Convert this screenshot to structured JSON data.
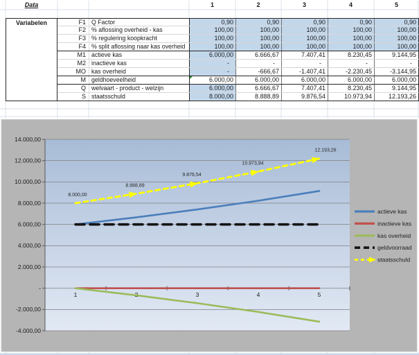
{
  "table": {
    "header_label": "Data",
    "col_headers": [
      "1",
      "2",
      "3",
      "4",
      "5"
    ],
    "row_group_label": "Variabelen",
    "rows": [
      {
        "code": "F1",
        "label": "Q Factor",
        "values": [
          "0,90",
          "0,90",
          "0,90",
          "0,90",
          "0,90"
        ]
      },
      {
        "code": "F2",
        "label": "% aflossing overheid - kas",
        "values": [
          "100,00",
          "100,00",
          "100,00",
          "100,00",
          "100,00"
        ]
      },
      {
        "code": "F3",
        "label": "% regulering koopkracht",
        "values": [
          "100,00",
          "100,00",
          "100,00",
          "100,00",
          "100,00"
        ]
      },
      {
        "code": "F4",
        "label": "% split aflossing naar kas overheid",
        "values": [
          "100,00",
          "100,00",
          "100,00",
          "100,00",
          "100,00"
        ]
      },
      {
        "code": "M1",
        "label": "actieve kas",
        "values": [
          "6.000,00",
          "6.666,67",
          "7.407,41",
          "8.230,45",
          "9.144,95"
        ]
      },
      {
        "code": "M2",
        "label": "inactieve kas",
        "values": [
          "-",
          "-",
          "-",
          "-",
          "-"
        ]
      },
      {
        "code": "MO",
        "label": "kas overheid",
        "values": [
          "-",
          "-666,67",
          "-1.407,41",
          "-2.230,45",
          "-3.144,95"
        ]
      },
      {
        "code": "M",
        "label": "geldhoeveelheid",
        "values": [
          "6.000,00",
          "6.000,00",
          "6.000,00",
          "6.000,00",
          "6.000,00"
        ]
      },
      {
        "code": "Q",
        "label": "welvaart - product - welzijn",
        "values": [
          "6.000,00",
          "6.666,67",
          "7.407,41",
          "8.230,45",
          "9.144,95"
        ]
      },
      {
        "code": "S",
        "label": "staatsschuld",
        "values": [
          "8.000,00",
          "8.888,89",
          "9.876,54",
          "10.973,94",
          "12.193,26"
        ]
      }
    ]
  },
  "chart_data": {
    "type": "line",
    "x": [
      1,
      2,
      3,
      4,
      5
    ],
    "xtick_labels": [
      "1",
      "2",
      "3",
      "4",
      "5"
    ],
    "ylim": [
      -4000,
      14000
    ],
    "ytick_step": 2000,
    "ytick_labels": [
      "14.000,00",
      "12.000,00",
      "10.000,00",
      "8.000,00",
      "6.000,00",
      "4.000,00",
      "2.000,00",
      "-",
      "-2.000,00",
      "-4.000,00"
    ],
    "grid": true,
    "legend_position": "right",
    "series": [
      {
        "name": "actieve kas",
        "color": "#4a7ebb",
        "style": "solid",
        "values": [
          6000,
          6666.67,
          7407.41,
          8230.45,
          9144.95
        ]
      },
      {
        "name": "inactieve kas",
        "color": "#c0504d",
        "style": "solid",
        "values": [
          0,
          0,
          0,
          0,
          0
        ]
      },
      {
        "name": "kas overheid",
        "color": "#9bbb59",
        "style": "solid",
        "values": [
          0,
          -666.67,
          -1407.41,
          -2230.45,
          -3144.95
        ]
      },
      {
        "name": "geldvoorraad",
        "color": "#141414",
        "style": "dashed",
        "values": [
          6000,
          6000,
          6000,
          6000,
          6000
        ]
      },
      {
        "name": "staatsschuld",
        "color": "#ffff00",
        "style": "dashed-arrow",
        "values": [
          8000,
          8888.89,
          9876.54,
          10973.94,
          12193.26
        ],
        "data_labels": [
          "8.000,00",
          "8.888,89",
          "9.876,54",
          "10.973,94",
          "12.193,26"
        ]
      }
    ]
  },
  "colors": {
    "cell_fill_blue": "#c3d7eb",
    "chart_background": "#b5b5b5",
    "plot_gradient_top": "#a8bcd7",
    "plot_gradient_bottom": "#e2e9f4",
    "gridline_sheet": "#d9e0e8",
    "gridline_chart": "#808080",
    "comment_indicator_green": "#2e8b2e"
  }
}
